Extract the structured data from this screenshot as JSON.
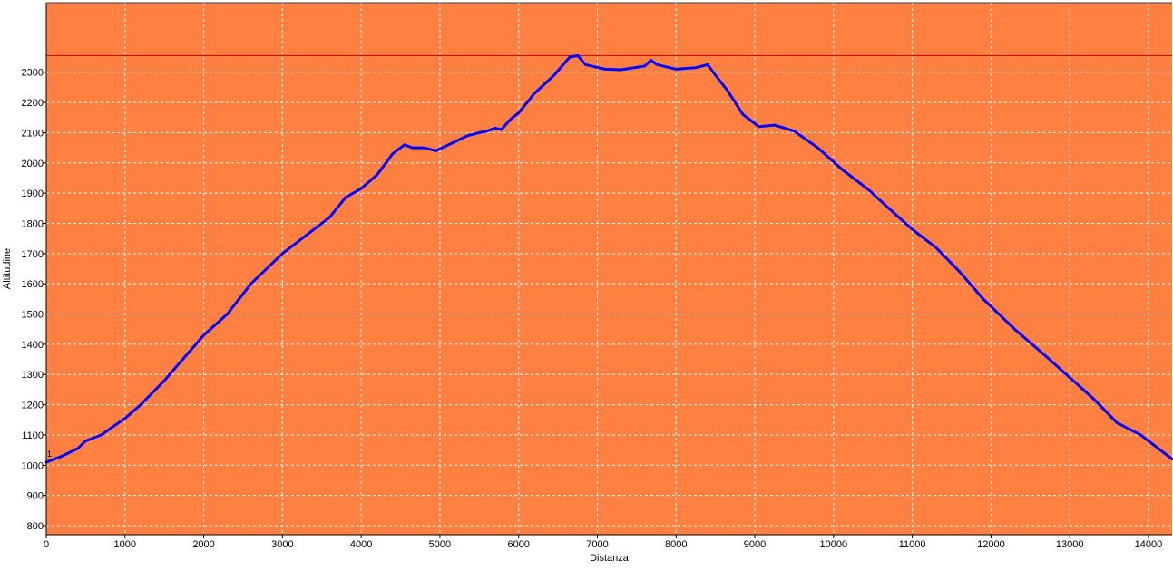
{
  "colors": {
    "plot_background": "#ff8040",
    "line": "#0000ff",
    "reference_line": "#c00000",
    "grid": "#ffffff",
    "axis": "#000000"
  },
  "chart_data": {
    "type": "line",
    "title": "",
    "xlabel": "Distanza",
    "ylabel": "Altitudine",
    "xlim": [
      0,
      14300
    ],
    "ylim": [
      770,
      2530
    ],
    "grid": true,
    "grid_style": "dashed",
    "x_ticks": [
      0,
      1000,
      2000,
      3000,
      4000,
      5000,
      6000,
      7000,
      8000,
      9000,
      10000,
      11000,
      12000,
      13000,
      14000
    ],
    "y_ticks": [
      800,
      900,
      1000,
      1100,
      1200,
      1300,
      1400,
      1500,
      1600,
      1700,
      1800,
      1900,
      2000,
      2100,
      2200,
      2300
    ],
    "reference_line": {
      "y": 2355
    },
    "start_marker_label": "1",
    "series": [
      {
        "x": [
          0,
          200,
          400,
          500,
          700,
          1000,
          1200,
          1500,
          1700,
          2000,
          2300,
          2600,
          3000,
          3300,
          3600,
          3800,
          4000,
          4200,
          4400,
          4550,
          4650,
          4800,
          4950,
          5150,
          5350,
          5500,
          5600,
          5700,
          5780,
          5900,
          6000,
          6200,
          6450,
          6650,
          6750,
          6850,
          7100,
          7300,
          7600,
          7680,
          7760,
          8000,
          8250,
          8400,
          8500,
          8650,
          8850,
          9050,
          9250,
          9500,
          9800,
          10100,
          10450,
          10700,
          11000,
          11300,
          11600,
          11900,
          12300,
          12700,
          13000,
          13300,
          13600,
          13900,
          14300
        ],
        "values": [
          1010,
          1030,
          1055,
          1080,
          1100,
          1155,
          1200,
          1280,
          1340,
          1430,
          1500,
          1600,
          1700,
          1760,
          1820,
          1885,
          1915,
          1960,
          2030,
          2060,
          2050,
          2050,
          2040,
          2065,
          2090,
          2100,
          2105,
          2115,
          2110,
          2145,
          2165,
          2230,
          2290,
          2350,
          2355,
          2325,
          2310,
          2308,
          2320,
          2340,
          2325,
          2310,
          2315,
          2325,
          2290,
          2240,
          2160,
          2120,
          2125,
          2105,
          2050,
          1980,
          1910,
          1850,
          1780,
          1720,
          1640,
          1550,
          1450,
          1360,
          1290,
          1220,
          1140,
          1100,
          1020
        ]
      }
    ]
  }
}
